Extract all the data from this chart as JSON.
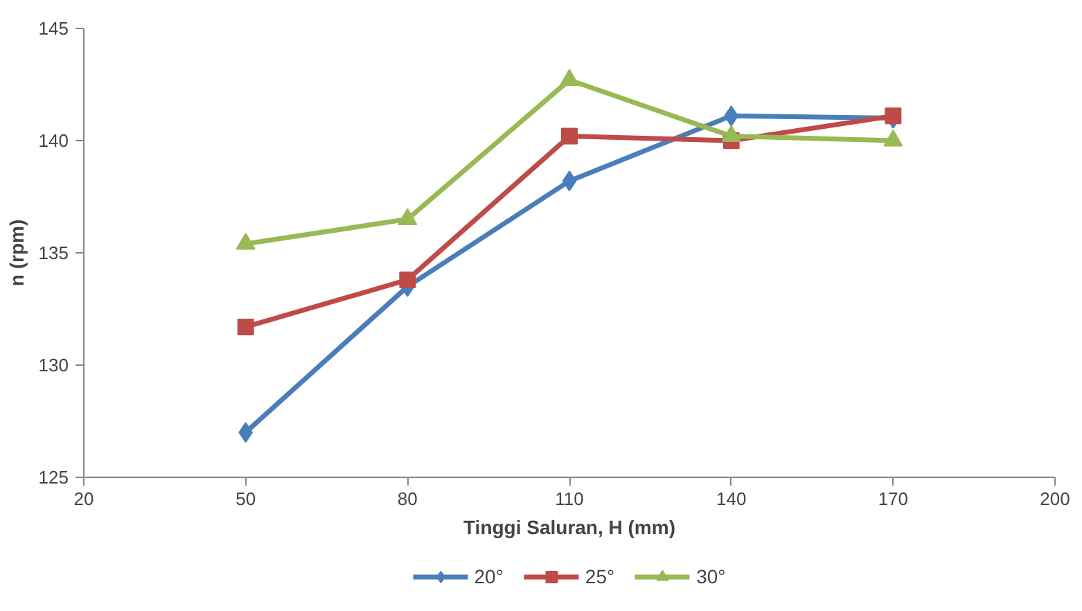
{
  "chart_data": {
    "type": "line",
    "xlabel": "Tinggi Saluran, H (mm)",
    "ylabel": "n (rpm)",
    "x": [
      50,
      80,
      110,
      140,
      170
    ],
    "xlim": [
      20,
      200
    ],
    "xticks": [
      20,
      50,
      80,
      110,
      140,
      170,
      200
    ],
    "ylim": [
      125,
      145
    ],
    "yticks": [
      125,
      130,
      135,
      140,
      145
    ],
    "grid": false,
    "legend": "bottom",
    "line_style": "solid",
    "series": [
      {
        "name": "20°",
        "color": "#4a7ebb",
        "marker": "diamond",
        "values": [
          127.0,
          133.5,
          138.2,
          141.1,
          141.0
        ]
      },
      {
        "name": "25°",
        "color": "#be4b48",
        "marker": "square",
        "values": [
          131.7,
          133.8,
          140.2,
          140.0,
          141.1
        ]
      },
      {
        "name": "30°",
        "color": "#98b954",
        "marker": "triangle",
        "values": [
          135.4,
          136.5,
          142.7,
          140.2,
          140.0
        ]
      }
    ]
  }
}
